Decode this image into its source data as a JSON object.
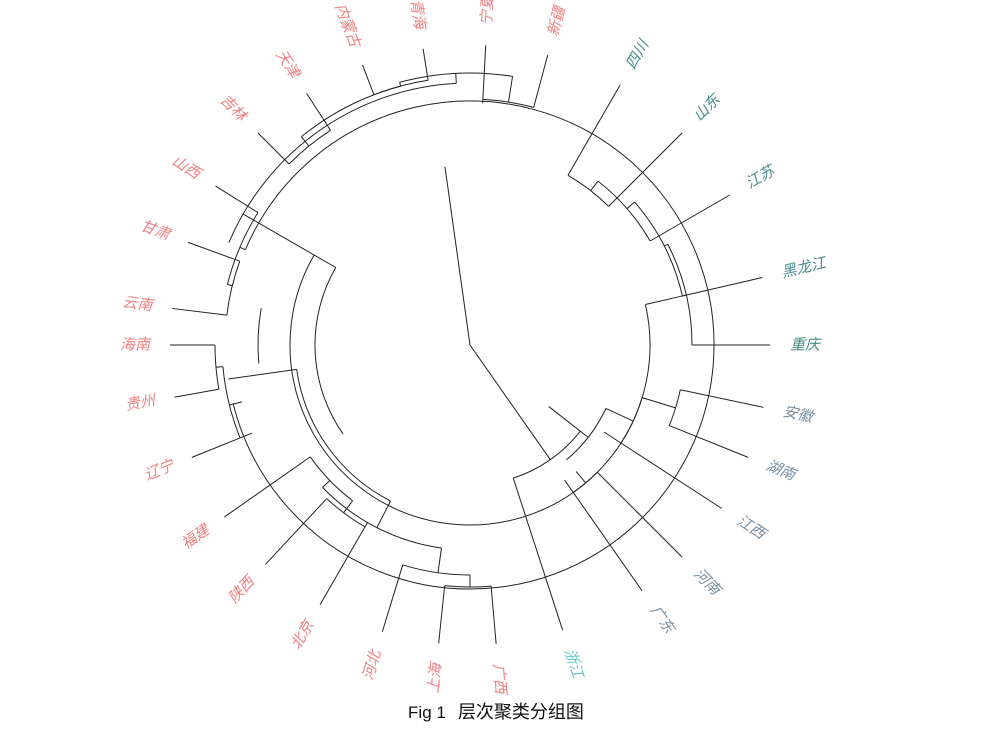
{
  "caption": {
    "label": "Fig 1",
    "text": "层次聚类分组图"
  },
  "colors": {
    "cluster1": "#f08080",
    "cluster2": "#4a8c8c",
    "cluster3": "#7a8fa0",
    "cluster4": "#5fc8c8",
    "branch": "#222222"
  },
  "clusters": [
    {
      "name": "cluster1",
      "leaves": [
        "广西",
        "上海",
        "河北",
        "北京",
        "陕西",
        "福建",
        "辽宁",
        "贵州",
        "海南",
        "云南",
        "甘肃",
        "山西",
        "吉林",
        "天津",
        "内蒙古",
        "青海",
        "宁夏",
        "新疆"
      ]
    },
    {
      "name": "cluster2",
      "leaves": [
        "四川",
        "山东",
        "江苏",
        "黑龙江",
        "重庆"
      ]
    },
    {
      "name": "cluster3",
      "leaves": [
        "安徽",
        "湖南",
        "江西",
        "河南",
        "广东"
      ]
    },
    {
      "name": "cluster4",
      "leaves": [
        "浙江"
      ]
    }
  ]
}
